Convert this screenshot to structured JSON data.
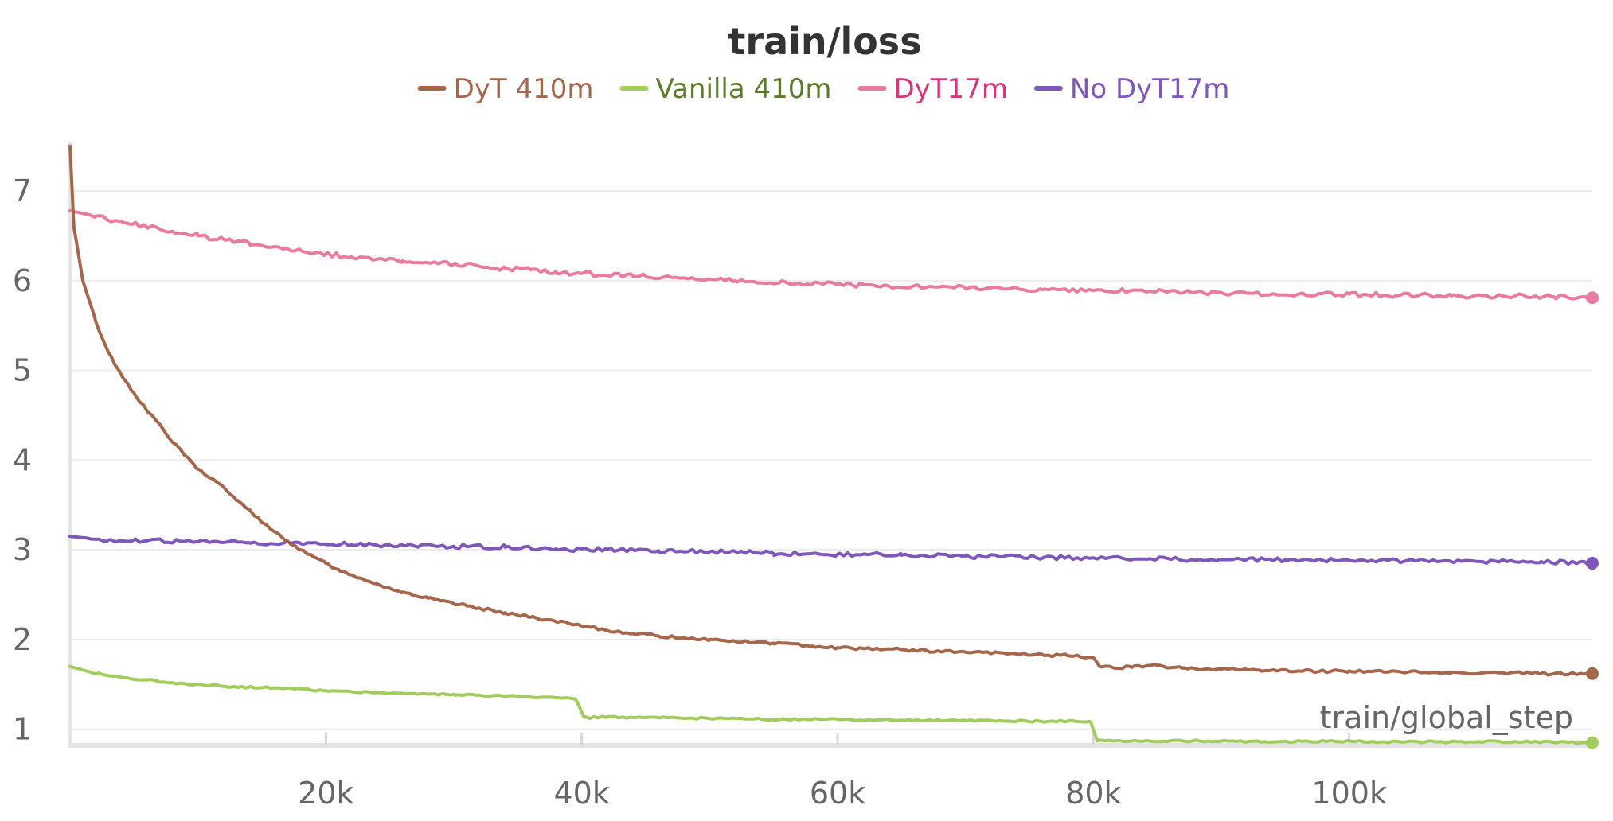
{
  "chart_data": {
    "type": "line",
    "title": "train/loss",
    "xlabel": "train/global_step",
    "ylabel": "",
    "xlim": [
      0,
      119000
    ],
    "ylim": [
      0.82,
      7.55
    ],
    "x_ticks": [
      {
        "value": 20000,
        "label": "20k"
      },
      {
        "value": 40000,
        "label": "40k"
      },
      {
        "value": 60000,
        "label": "60k"
      },
      {
        "value": 80000,
        "label": "80k"
      },
      {
        "value": 100000,
        "label": "100k"
      }
    ],
    "y_ticks": [
      {
        "value": 1,
        "label": "1"
      },
      {
        "value": 2,
        "label": "2"
      },
      {
        "value": 3,
        "label": "3"
      },
      {
        "value": 4,
        "label": "4"
      },
      {
        "value": 5,
        "label": "5"
      },
      {
        "value": 6,
        "label": "6"
      },
      {
        "value": 7,
        "label": "7"
      }
    ],
    "grid": true,
    "legend_position": "top-center",
    "series": [
      {
        "name": "DyT 410m",
        "color": "#A5674C",
        "text_color": "#A5674C",
        "points": [
          [
            0,
            7.5
          ],
          [
            300,
            6.6
          ],
          [
            1000,
            6.0
          ],
          [
            2000,
            5.55
          ],
          [
            3000,
            5.2
          ],
          [
            4000,
            4.95
          ],
          [
            5000,
            4.75
          ],
          [
            6000,
            4.55
          ],
          [
            7000,
            4.4
          ],
          [
            8000,
            4.2
          ],
          [
            9000,
            4.05
          ],
          [
            10000,
            3.9
          ],
          [
            11000,
            3.8
          ],
          [
            12000,
            3.7
          ],
          [
            13000,
            3.55
          ],
          [
            14000,
            3.45
          ],
          [
            15000,
            3.3
          ],
          [
            16000,
            3.2
          ],
          [
            17000,
            3.1
          ],
          [
            18000,
            3.0
          ],
          [
            19000,
            2.92
          ],
          [
            20000,
            2.85
          ],
          [
            21000,
            2.78
          ],
          [
            22000,
            2.72
          ],
          [
            23000,
            2.67
          ],
          [
            24000,
            2.62
          ],
          [
            25000,
            2.57
          ],
          [
            26000,
            2.53
          ],
          [
            27000,
            2.49
          ],
          [
            28000,
            2.46
          ],
          [
            29000,
            2.43
          ],
          [
            30000,
            2.4
          ],
          [
            32000,
            2.35
          ],
          [
            34000,
            2.3
          ],
          [
            36000,
            2.25
          ],
          [
            38000,
            2.2
          ],
          [
            40000,
            2.15
          ],
          [
            42000,
            2.1
          ],
          [
            44000,
            2.07
          ],
          [
            46000,
            2.04
          ],
          [
            48000,
            2.02
          ],
          [
            50000,
            2.0
          ],
          [
            52000,
            1.98
          ],
          [
            55000,
            1.96
          ],
          [
            58000,
            1.93
          ],
          [
            60000,
            1.91
          ],
          [
            63000,
            1.9
          ],
          [
            66000,
            1.88
          ],
          [
            70000,
            1.86
          ],
          [
            74000,
            1.84
          ],
          [
            78000,
            1.82
          ],
          [
            80000,
            1.8
          ],
          [
            80500,
            1.7
          ],
          [
            83000,
            1.69
          ],
          [
            85000,
            1.71
          ],
          [
            87000,
            1.68
          ],
          [
            90000,
            1.67
          ],
          [
            93000,
            1.66
          ],
          [
            96000,
            1.65
          ],
          [
            100000,
            1.65
          ],
          [
            104000,
            1.64
          ],
          [
            108000,
            1.63
          ],
          [
            112000,
            1.63
          ],
          [
            116000,
            1.62
          ],
          [
            119000,
            1.62
          ]
        ]
      },
      {
        "name": "Vanilla 410m",
        "color": "#A3CC5E",
        "text_color": "#5B7A2C",
        "points": [
          [
            0,
            1.7
          ],
          [
            2000,
            1.62
          ],
          [
            4000,
            1.58
          ],
          [
            6000,
            1.55
          ],
          [
            8000,
            1.52
          ],
          [
            10000,
            1.5
          ],
          [
            12000,
            1.48
          ],
          [
            14000,
            1.47
          ],
          [
            16000,
            1.46
          ],
          [
            18000,
            1.45
          ],
          [
            20000,
            1.43
          ],
          [
            22000,
            1.42
          ],
          [
            24000,
            1.41
          ],
          [
            26000,
            1.4
          ],
          [
            28000,
            1.39
          ],
          [
            30000,
            1.39
          ],
          [
            32000,
            1.38
          ],
          [
            34000,
            1.37
          ],
          [
            36000,
            1.36
          ],
          [
            38000,
            1.35
          ],
          [
            39500,
            1.34
          ],
          [
            40200,
            1.13
          ],
          [
            42000,
            1.14
          ],
          [
            44000,
            1.13
          ],
          [
            46000,
            1.13
          ],
          [
            48000,
            1.12
          ],
          [
            50000,
            1.12
          ],
          [
            52000,
            1.12
          ],
          [
            55000,
            1.11
          ],
          [
            58000,
            1.11
          ],
          [
            60000,
            1.11
          ],
          [
            63000,
            1.1
          ],
          [
            66000,
            1.1
          ],
          [
            70000,
            1.1
          ],
          [
            74000,
            1.09
          ],
          [
            78000,
            1.09
          ],
          [
            79800,
            1.08
          ],
          [
            80300,
            0.87
          ],
          [
            83000,
            0.87
          ],
          [
            86000,
            0.87
          ],
          [
            90000,
            0.87
          ],
          [
            94000,
            0.86
          ],
          [
            98000,
            0.87
          ],
          [
            102000,
            0.86
          ],
          [
            106000,
            0.86
          ],
          [
            110000,
            0.86
          ],
          [
            114000,
            0.86
          ],
          [
            119000,
            0.85
          ]
        ]
      },
      {
        "name": "DyT17m",
        "color": "#E97BA1",
        "text_color": "#D4387A",
        "points": [
          [
            0,
            6.78
          ],
          [
            2000,
            6.72
          ],
          [
            4000,
            6.66
          ],
          [
            6000,
            6.6
          ],
          [
            8000,
            6.55
          ],
          [
            10000,
            6.5
          ],
          [
            12000,
            6.46
          ],
          [
            14000,
            6.42
          ],
          [
            16000,
            6.38
          ],
          [
            18000,
            6.34
          ],
          [
            20000,
            6.3
          ],
          [
            22000,
            6.27
          ],
          [
            24000,
            6.24
          ],
          [
            26000,
            6.22
          ],
          [
            28000,
            6.2
          ],
          [
            30000,
            6.18
          ],
          [
            32000,
            6.16
          ],
          [
            34000,
            6.14
          ],
          [
            36000,
            6.12
          ],
          [
            38000,
            6.1
          ],
          [
            40000,
            6.08
          ],
          [
            44000,
            6.05
          ],
          [
            48000,
            6.03
          ],
          [
            52000,
            6.0
          ],
          [
            56000,
            5.98
          ],
          [
            60000,
            5.96
          ],
          [
            64000,
            5.94
          ],
          [
            68000,
            5.93
          ],
          [
            72000,
            5.92
          ],
          [
            76000,
            5.9
          ],
          [
            80000,
            5.89
          ],
          [
            84000,
            5.88
          ],
          [
            88000,
            5.87
          ],
          [
            92000,
            5.86
          ],
          [
            96000,
            5.85
          ],
          [
            100000,
            5.85
          ],
          [
            104000,
            5.84
          ],
          [
            108000,
            5.83
          ],
          [
            112000,
            5.83
          ],
          [
            116000,
            5.82
          ],
          [
            119000,
            5.81
          ]
        ]
      },
      {
        "name": "No DyT17m",
        "color": "#7E57B8",
        "text_color": "#7E57B8",
        "points": [
          [
            0,
            3.15
          ],
          [
            3000,
            3.11
          ],
          [
            6000,
            3.1
          ],
          [
            10000,
            3.09
          ],
          [
            14000,
            3.08
          ],
          [
            18000,
            3.07
          ],
          [
            22000,
            3.06
          ],
          [
            26000,
            3.05
          ],
          [
            30000,
            3.04
          ],
          [
            34000,
            3.03
          ],
          [
            38000,
            3.01
          ],
          [
            42000,
            3.0
          ],
          [
            46000,
            2.99
          ],
          [
            50000,
            2.98
          ],
          [
            55000,
            2.96
          ],
          [
            60000,
            2.95
          ],
          [
            65000,
            2.94
          ],
          [
            70000,
            2.93
          ],
          [
            75000,
            2.92
          ],
          [
            80000,
            2.91
          ],
          [
            85000,
            2.9
          ],
          [
            90000,
            2.89
          ],
          [
            95000,
            2.89
          ],
          [
            100000,
            2.88
          ],
          [
            105000,
            2.88
          ],
          [
            110000,
            2.87
          ],
          [
            115000,
            2.87
          ],
          [
            119000,
            2.85
          ]
        ]
      }
    ]
  }
}
